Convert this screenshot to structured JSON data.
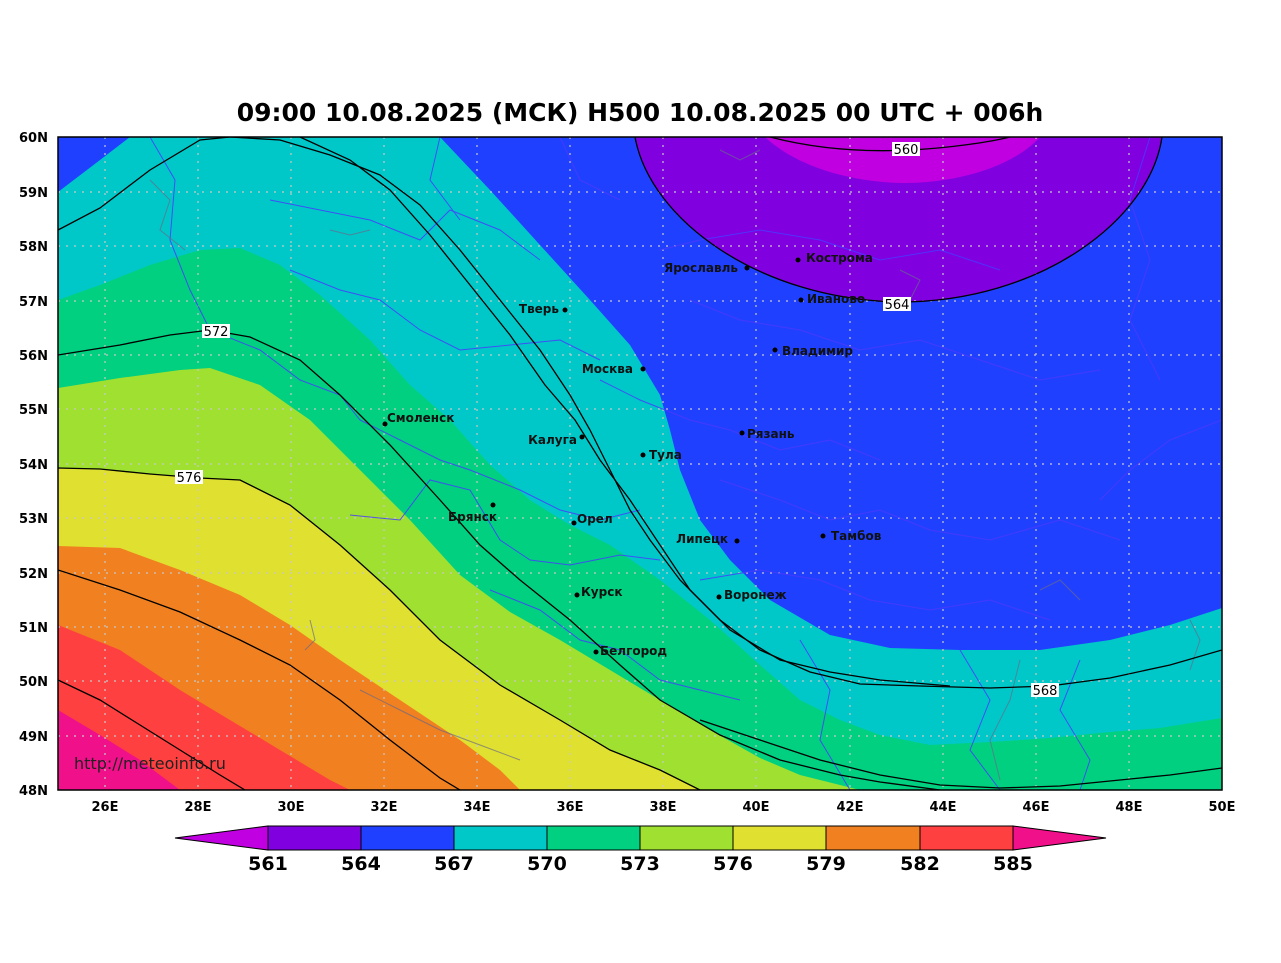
{
  "title": "09:00 10.08.2025 (МСК) H500  10.08.2025 00 UTC + 006h",
  "watermark": "http://meteoinfo.ru",
  "axes": {
    "lat_labels": [
      "60N",
      "59N",
      "58N",
      "57N",
      "56N",
      "55N",
      "54N",
      "53N",
      "52N",
      "51N",
      "50N",
      "49N",
      "48N"
    ],
    "lon_labels": [
      "26E",
      "28E",
      "30E",
      "32E",
      "34E",
      "36E",
      "38E",
      "40E",
      "42E",
      "44E",
      "46E",
      "48E",
      "50E"
    ],
    "lat_range": [
      48,
      60
    ],
    "lon_range": [
      25,
      50
    ],
    "grid": true
  },
  "colorbar": {
    "labels": [
      "561",
      "564",
      "567",
      "570",
      "573",
      "576",
      "579",
      "582",
      "585"
    ],
    "colors": [
      "#c000e0",
      "#8000e0",
      "#2040ff",
      "#00c8c8",
      "#00d080",
      "#a0e030",
      "#e0e030",
      "#f08020",
      "#ff4040",
      "#f0108a"
    ]
  },
  "cities": [
    {
      "name": "Кострома",
      "lon": 40.9,
      "lat": 57.77
    },
    {
      "name": "Ярославль",
      "lon": 39.8,
      "lat": 57.62
    },
    {
      "name": "Иваново",
      "lon": 41.0,
      "lat": 57.0
    },
    {
      "name": "Тверь",
      "lon": 35.9,
      "lat": 56.86
    },
    {
      "name": "Владимир",
      "lon": 40.4,
      "lat": 56.13
    },
    {
      "name": "Москва",
      "lon": 37.6,
      "lat": 55.75
    },
    {
      "name": "Смоленск",
      "lon": 32.05,
      "lat": 54.78
    },
    {
      "name": "Калуга",
      "lon": 36.25,
      "lat": 54.51
    },
    {
      "name": "Рязань",
      "lon": 39.7,
      "lat": 54.6
    },
    {
      "name": "Тула",
      "lon": 37.6,
      "lat": 54.2
    },
    {
      "name": "Брянск",
      "lon": 34.35,
      "lat": 53.25
    },
    {
      "name": "Орел",
      "lon": 36.07,
      "lat": 52.97
    },
    {
      "name": "Липецк",
      "lon": 39.6,
      "lat": 52.6
    },
    {
      "name": "Тамбов",
      "lon": 41.45,
      "lat": 52.7
    },
    {
      "name": "Курск",
      "lon": 36.2,
      "lat": 51.73
    },
    {
      "name": "Воронеж",
      "lon": 39.2,
      "lat": 51.66
    },
    {
      "name": "Белгород",
      "lon": 36.6,
      "lat": 50.6
    }
  ],
  "contour_labels": [
    "560",
    "564",
    "568",
    "572",
    "576"
  ]
}
